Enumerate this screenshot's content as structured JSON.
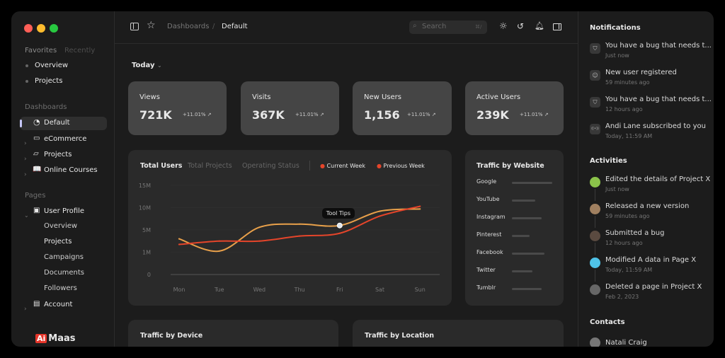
{
  "window": {
    "controls": [
      "close",
      "minimize",
      "maximize"
    ]
  },
  "sidebar": {
    "tabs": [
      "Favorites",
      "Recently"
    ],
    "favorites": [
      "Overview",
      "Projects"
    ],
    "dashboards_heading": "Dashboards",
    "dashboards": [
      {
        "label": "Default",
        "icon": "pie-chart-icon",
        "active": true
      },
      {
        "label": "eCommerce",
        "icon": "shopping-bag-icon"
      },
      {
        "label": "Projects",
        "icon": "folder-icon"
      },
      {
        "label": "Online Courses",
        "icon": "book-icon"
      }
    ],
    "pages_heading": "Pages",
    "user_profile": {
      "label": "User Profile",
      "children": [
        "Overview",
        "Projects",
        "Campaigns",
        "Documents",
        "Followers"
      ]
    },
    "account": "Account",
    "logo": {
      "mark": "Ai",
      "text": "Maas"
    }
  },
  "header": {
    "breadcrumb": [
      "Dashboards",
      "Default"
    ],
    "search_placeholder": "Search",
    "search_shortcut": "⌘/"
  },
  "main": {
    "period": "Today",
    "stats": [
      {
        "label": "Views",
        "value": "721K",
        "change": "+11.01%"
      },
      {
        "label": "Visits",
        "value": "367K",
        "change": "+11.01%"
      },
      {
        "label": "New Users",
        "value": "1,156",
        "change": "+11.01%"
      },
      {
        "label": "Active Users",
        "value": "239K",
        "change": "+11.01%"
      }
    ],
    "chart_tabs": [
      "Total Users",
      "Total Projects",
      "Operating Status"
    ],
    "tooltip": "Tool Tips",
    "traffic_website": {
      "title": "Traffic by Website",
      "items": [
        {
          "name": "Google",
          "level": 1.0
        },
        {
          "name": "YouTube",
          "level": 0.57
        },
        {
          "name": "Instagram",
          "level": 0.73
        },
        {
          "name": "Pinterest",
          "level": 0.43
        },
        {
          "name": "Facebook",
          "level": 0.8
        },
        {
          "name": "Twitter",
          "level": 0.5
        },
        {
          "name": "Tumblr",
          "level": 0.73
        }
      ]
    },
    "traffic_device": "Traffic by Device",
    "traffic_location": "Traffic by Location"
  },
  "chart_data": {
    "type": "line",
    "categories": [
      "Mon",
      "Tue",
      "Wed",
      "Thu",
      "Fri",
      "Sat",
      "Sun"
    ],
    "yticks": [
      "0",
      "1M",
      "5M",
      "10M",
      "15M"
    ],
    "ytick_values": [
      0,
      1,
      5,
      10,
      15
    ],
    "grid": true,
    "legend": "top-right",
    "series": [
      {
        "name": "Current Week",
        "color": "#e8a04a",
        "values": [
          3.4,
          1.2,
          5.6,
          6.3,
          6.0,
          9.2,
          9.7
        ]
      },
      {
        "name": "Previous Week",
        "color": "#e5452a",
        "values": [
          2.4,
          3.0,
          3.0,
          3.9,
          4.4,
          8.1,
          10.3
        ]
      }
    ],
    "highlight": {
      "category": "Fri",
      "series": "Current Week"
    }
  },
  "notifications": {
    "title": "Notifications",
    "items": [
      {
        "icon": "bug-icon",
        "text": "You have a bug that needs t...",
        "time": "Just now"
      },
      {
        "icon": "user-icon",
        "text": "New user registered",
        "time": "59 minutes ago"
      },
      {
        "icon": "bug-icon",
        "text": "You have a bug that needs t...",
        "time": "12 hours ago"
      },
      {
        "icon": "broadcast-icon",
        "text": "Andi Lane subscribed to you",
        "time": "Today, 11:59 AM"
      }
    ]
  },
  "activities": {
    "title": "Activities",
    "items": [
      {
        "text": "Edited the details of Project X",
        "time": "Just now",
        "color": "#8bc34a"
      },
      {
        "text": "Released a new version",
        "time": "59 minutes ago",
        "color": "#a08060"
      },
      {
        "text": "Submitted a bug",
        "time": "12 hours ago",
        "color": "#5a4a40"
      },
      {
        "text": "Modified A data in Page X",
        "time": "Today, 11:59 AM",
        "color": "#4fc3e8"
      },
      {
        "text": "Deleted a page in Project X",
        "time": "Feb 2, 2023",
        "color": "#666"
      }
    ]
  },
  "contacts": {
    "title": "Contacts",
    "items": [
      "Natali Craig"
    ]
  }
}
